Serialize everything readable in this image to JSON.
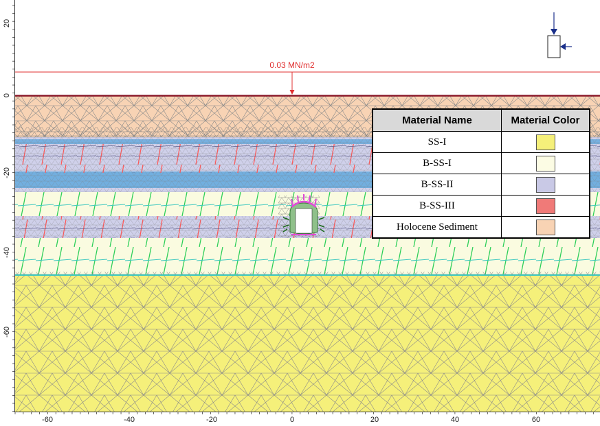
{
  "load_label": "0.03 MN/m2",
  "axes": {
    "x_ticks": [
      "-60",
      "-40",
      "-20",
      "0",
      "20",
      "40",
      "60"
    ],
    "y_ticks": [
      "20",
      "0",
      "-20",
      "-40",
      "-60"
    ]
  },
  "legend": {
    "header_name": "Material Name",
    "header_color": "Material Color",
    "rows": [
      {
        "name": "SS-I",
        "color": "#f5f07a"
      },
      {
        "name": "B-SS-I",
        "color": "#fcfce4"
      },
      {
        "name": "B-SS-II",
        "color": "#c9c9e6"
      },
      {
        "name": "B-SS-III",
        "color": "#f07a78"
      },
      {
        "name": "Holocene Sediment",
        "color": "#f8d3b4"
      }
    ]
  },
  "colors": {
    "holocene": "#f8d3b4",
    "bss2": "#cfd0ea",
    "bss2_band": "#5aa6dc",
    "bss1": "#fafbe0",
    "ss1": "#f5f07a",
    "ground_line": "#8b1a2a",
    "load_line": "#e03030",
    "green_bars": "#2ecf5a",
    "cyan_bars": "#3ec8c0",
    "red_bars": "#ff5a5a",
    "mesh": "#8a8a8a",
    "support": "#e04ad8"
  }
}
